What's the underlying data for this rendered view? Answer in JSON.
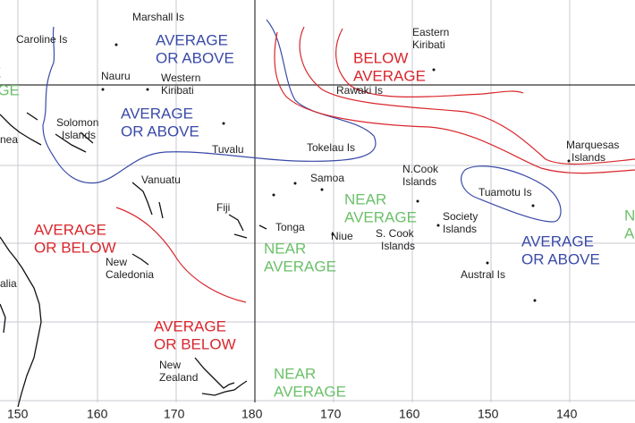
{
  "map": {
    "longitudes": [
      "150",
      "160",
      "170",
      "180",
      "170",
      "160",
      "150",
      "140"
    ],
    "places": [
      {
        "lines": [
          "Marshall Is"
        ]
      },
      {
        "lines": [
          "Caroline Is"
        ]
      },
      {
        "lines": [
          "Nauru"
        ]
      },
      {
        "lines": [
          "Western",
          "Kiribati"
        ]
      },
      {
        "lines": [
          "Solomon",
          "Islands"
        ]
      },
      {
        "lines": [
          "nea"
        ]
      },
      {
        "lines": [
          "Tuvalu"
        ]
      },
      {
        "lines": [
          "Vanuatu"
        ]
      },
      {
        "lines": [
          "Fiji"
        ]
      },
      {
        "lines": [
          "New",
          "Caledonia"
        ]
      },
      {
        "lines": [
          "alia"
        ]
      },
      {
        "lines": [
          "New",
          "Zealand"
        ]
      },
      {
        "lines": [
          "Tonga"
        ]
      },
      {
        "lines": [
          "Niue"
        ]
      },
      {
        "lines": [
          "Samoa"
        ]
      },
      {
        "lines": [
          "Tokelau Is"
        ]
      },
      {
        "lines": [
          "Eastern",
          "Kiribati"
        ]
      },
      {
        "lines": [
          "Rawaki Is"
        ]
      },
      {
        "lines": [
          "N.Cook",
          "Islands"
        ]
      },
      {
        "lines": [
          "S. Cook",
          "Islands"
        ]
      },
      {
        "lines": [
          "Society",
          "Islands"
        ]
      },
      {
        "lines": [
          "Tuamotu Is"
        ]
      },
      {
        "lines": [
          "Marquesas",
          "Islands"
        ]
      },
      {
        "lines": [
          "Austral Is"
        ]
      }
    ],
    "regions": [
      {
        "lines": [
          "AVERAGE",
          "OR ABOVE"
        ],
        "color": "#3a4aa8"
      },
      {
        "lines": [
          "BELOW",
          "AVERAGE"
        ],
        "color": "#d9262c"
      },
      {
        "lines": [
          "AVERAGE",
          "OR ABOVE"
        ],
        "color": "#3a4aa8"
      },
      {
        "lines": [
          "AVERAGE",
          "OR BELOW"
        ],
        "color": "#d9262c"
      },
      {
        "lines": [
          "NEAR",
          "AVERAGE"
        ],
        "color": "#6cc06a"
      },
      {
        "lines": [
          "NEAR",
          "AVERAGE"
        ],
        "color": "#6cc06a"
      },
      {
        "lines": [
          "AVERAGE",
          "OR ABOVE"
        ],
        "color": "#3a4aa8"
      },
      {
        "lines": [
          "AVERAGE",
          "OR BELOW"
        ],
        "color": "#d9262c"
      },
      {
        "lines": [
          "NEAR",
          "AVERAGE"
        ],
        "color": "#6cc06a"
      },
      {
        "lines": [
          "E",
          "AGE"
        ],
        "color": "#6cc06a"
      },
      {
        "lines": [
          "N",
          "A"
        ],
        "color": "#6cc06a"
      }
    ]
  }
}
